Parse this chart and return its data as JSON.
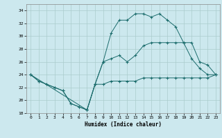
{
  "title": "",
  "xlabel": "Humidex (Indice chaleur)",
  "ylabel": "",
  "background_color": "#cce8ee",
  "grid_color": "#aacccc",
  "line_color": "#1a6b6b",
  "xlim": [
    -0.5,
    23.5
  ],
  "ylim": [
    18,
    35
  ],
  "yticks": [
    18,
    20,
    22,
    24,
    26,
    28,
    30,
    32,
    34
  ],
  "xticks": [
    0,
    1,
    2,
    3,
    4,
    5,
    6,
    7,
    8,
    9,
    10,
    11,
    12,
    13,
    14,
    15,
    16,
    17,
    18,
    19,
    20,
    21,
    22,
    23
  ],
  "series": [
    {
      "x": [
        0,
        1,
        2,
        3,
        4,
        5,
        6,
        7,
        8,
        9,
        10,
        11,
        12,
        13,
        14,
        15,
        16,
        17,
        18,
        19,
        20,
        21,
        22,
        23
      ],
      "y": [
        24,
        23,
        22.5,
        22,
        21.5,
        19.5,
        19,
        18.5,
        22.5,
        22.5,
        23,
        23,
        23,
        23,
        23.5,
        23.5,
        23.5,
        23.5,
        23.5,
        23.5,
        23.5,
        23.5,
        23.5,
        24
      ]
    },
    {
      "x": [
        0,
        1,
        2,
        3,
        4,
        5,
        6,
        7,
        8,
        9,
        10,
        11,
        12,
        13,
        14,
        15,
        16,
        17,
        18,
        19,
        20,
        21,
        22,
        23
      ],
      "y": [
        24,
        23,
        22.5,
        22,
        21.5,
        19.5,
        19,
        18.5,
        22.5,
        26,
        30.5,
        32.5,
        32.5,
        33.5,
        33.5,
        33,
        33.5,
        32.5,
        31.5,
        29,
        26.5,
        25,
        24,
        24
      ]
    },
    {
      "x": [
        0,
        7,
        8,
        9,
        10,
        11,
        12,
        13,
        14,
        15,
        16,
        17,
        18,
        19,
        20,
        21,
        22,
        23
      ],
      "y": [
        24,
        18.5,
        22.5,
        26,
        26.5,
        27,
        26,
        27,
        28.5,
        29,
        29,
        29,
        29,
        29,
        29,
        26,
        25.5,
        24
      ]
    }
  ]
}
